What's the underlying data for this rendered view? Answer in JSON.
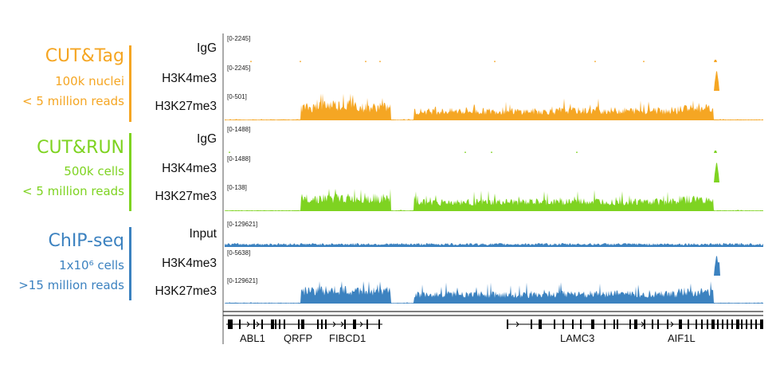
{
  "colors": {
    "cuttag": "#f5a623",
    "cutrun": "#7ed321",
    "chipseq": "#3c82c0"
  },
  "groups": [
    {
      "title": "CUT&Tag",
      "sub1": "100k nuclei",
      "sub2": "< 5 million reads",
      "color": "#f5a623",
      "tracks": [
        {
          "label": "IgG",
          "range": "[0-2245]",
          "profile": "sparse"
        },
        {
          "label": "H3K4me3",
          "range": "[0-2245]",
          "profile": "peak"
        },
        {
          "label": "H3K27me3",
          "range": "[0-501]",
          "profile": "broad"
        }
      ]
    },
    {
      "title": "CUT&RUN",
      "sub1": "500k cells",
      "sub2": "< 5 million reads",
      "color": "#7ed321",
      "tracks": [
        {
          "label": "IgG",
          "range": "[0-1488]",
          "profile": "sparse"
        },
        {
          "label": "H3K4me3",
          "range": "[0-1488]",
          "profile": "peak"
        },
        {
          "label": "H3K27me3",
          "range": "[0-138]",
          "profile": "broad"
        }
      ]
    },
    {
      "title": "ChIP-seq",
      "sub1": "1x10⁶ cells",
      "sub2": ">15 million reads",
      "color": "#3c82c0",
      "tracks": [
        {
          "label": "Input",
          "range": "[0-129621]",
          "profile": "input"
        },
        {
          "label": "H3K4me3",
          "range": "[0-5638]",
          "profile": "peak"
        },
        {
          "label": "H3K27me3",
          "range": "[0-129621]",
          "profile": "broad"
        }
      ]
    }
  ],
  "genes": [
    "ABL1",
    "QRFP",
    "FIBCD1",
    "LAMC3",
    "AIF1L"
  ]
}
